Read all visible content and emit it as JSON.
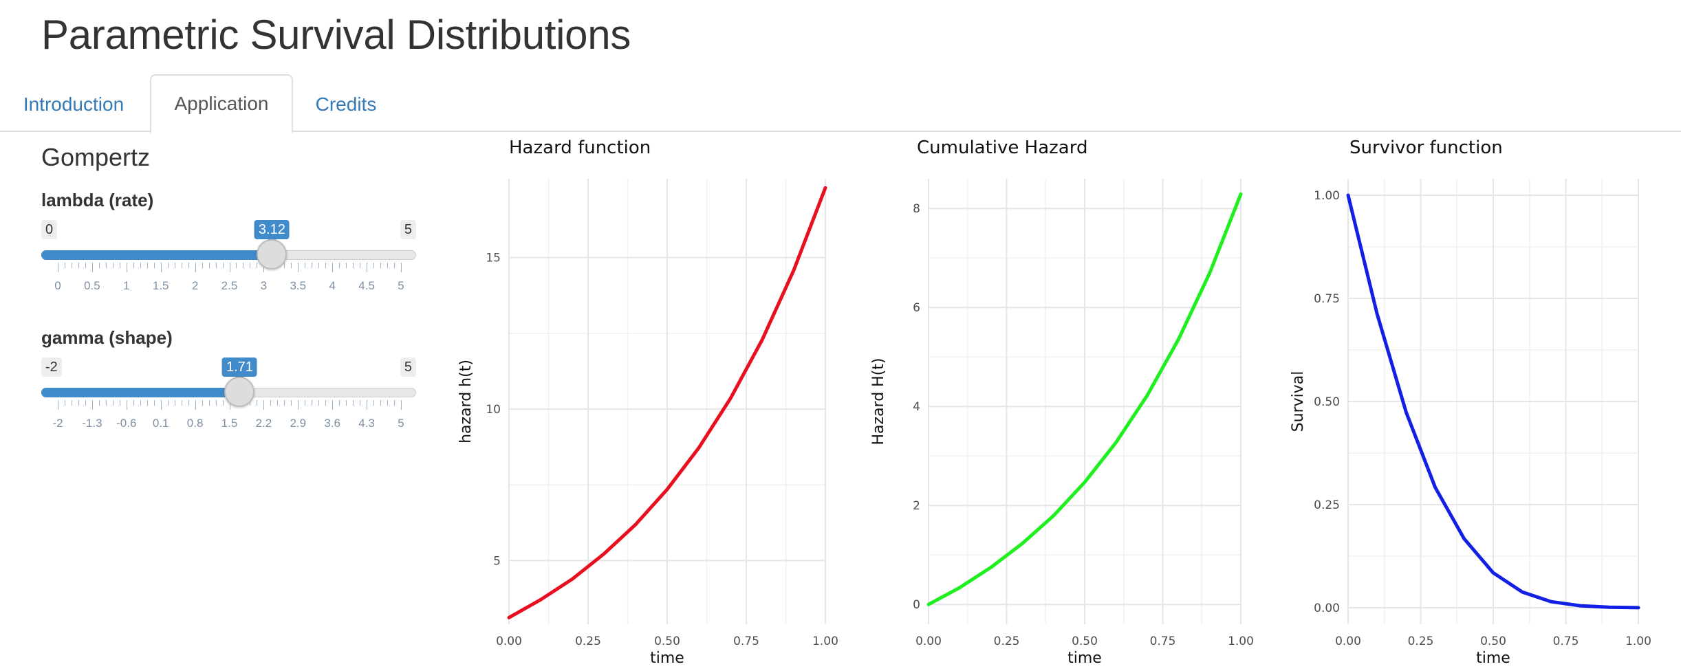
{
  "page": {
    "title": "Parametric Survival Distributions"
  },
  "tabs": [
    {
      "label": "Introduction",
      "active": false
    },
    {
      "label": "Application",
      "active": true
    },
    {
      "label": "Credits",
      "active": false
    }
  ],
  "sidebar": {
    "title": "Gompertz",
    "sliders": [
      {
        "label": "lambda (rate)",
        "min": 0,
        "max": 5,
        "value": 3.12,
        "min_label": "0",
        "max_label": "5",
        "value_label": "3.12",
        "tick_labels": [
          "0",
          "0.5",
          "1",
          "1.5",
          "2",
          "2.5",
          "3",
          "3.5",
          "4",
          "4.5",
          "5"
        ]
      },
      {
        "label": "gamma (shape)",
        "min": -2,
        "max": 5,
        "value": 1.71,
        "min_label": "-2",
        "max_label": "5",
        "value_label": "1.71",
        "tick_labels": [
          "-2",
          "-1.3",
          "-0.6",
          "0.1",
          "0.8",
          "1.5",
          "2.2",
          "2.9",
          "3.6",
          "4.3",
          "5"
        ]
      }
    ]
  },
  "colors": {
    "accent": "#428bca",
    "link": "#337ab7",
    "hazard": "#e8101e",
    "cumhaz": "#1fef1f",
    "survival": "#1220e6"
  },
  "chart_data": [
    {
      "type": "line",
      "title": "Hazard function",
      "xlabel": "time",
      "ylabel": "hazard h(t)",
      "xlim": [
        0,
        1
      ],
      "ylim": [
        2.9,
        17.6
      ],
      "xticks": [
        "0.00",
        "0.25",
        "0.50",
        "0.75",
        "1.00"
      ],
      "yticks": [
        "5",
        "10",
        "15"
      ],
      "series": [
        {
          "color": "#e8101e",
          "x": [
            0,
            0.1,
            0.2,
            0.3,
            0.4,
            0.5,
            0.6,
            0.7,
            0.8,
            0.9,
            1.0
          ],
          "y": [
            3.12,
            3.71,
            4.39,
            5.22,
            6.19,
            7.35,
            8.72,
            10.35,
            12.28,
            14.58,
            17.3
          ]
        }
      ]
    },
    {
      "type": "line",
      "title": "Cumulative Hazard",
      "xlabel": "time",
      "ylabel": "Hazard H(t)",
      "xlim": [
        0,
        1
      ],
      "ylim": [
        -0.4,
        8.6
      ],
      "xticks": [
        "0.00",
        "0.25",
        "0.50",
        "0.75",
        "1.00"
      ],
      "yticks": [
        "0",
        "2",
        "4",
        "6",
        "8"
      ],
      "series": [
        {
          "color": "#1fef1f",
          "x": [
            0,
            0.1,
            0.2,
            0.3,
            0.4,
            0.5,
            0.6,
            0.7,
            0.8,
            0.9,
            1.0
          ],
          "y": [
            0,
            0.34,
            0.75,
            1.23,
            1.79,
            2.47,
            3.27,
            4.22,
            5.35,
            6.69,
            8.29
          ]
        }
      ]
    },
    {
      "type": "line",
      "title": "Survivor function",
      "xlabel": "time",
      "ylabel": "Survival",
      "xlim": [
        0,
        1
      ],
      "ylim": [
        -0.04,
        1.04
      ],
      "xticks": [
        "0.00",
        "0.25",
        "0.50",
        "0.75",
        "1.00"
      ],
      "yticks": [
        "0.00",
        "0.25",
        "0.50",
        "0.75",
        "1.00"
      ],
      "series": [
        {
          "color": "#1220e6",
          "x": [
            0,
            0.1,
            0.2,
            0.3,
            0.4,
            0.5,
            0.6,
            0.7,
            0.8,
            0.9,
            1.0
          ],
          "y": [
            1.0,
            0.712,
            0.474,
            0.292,
            0.167,
            0.0847,
            0.0381,
            0.0147,
            0.00475,
            0.00124,
            0.00025
          ]
        }
      ]
    }
  ]
}
